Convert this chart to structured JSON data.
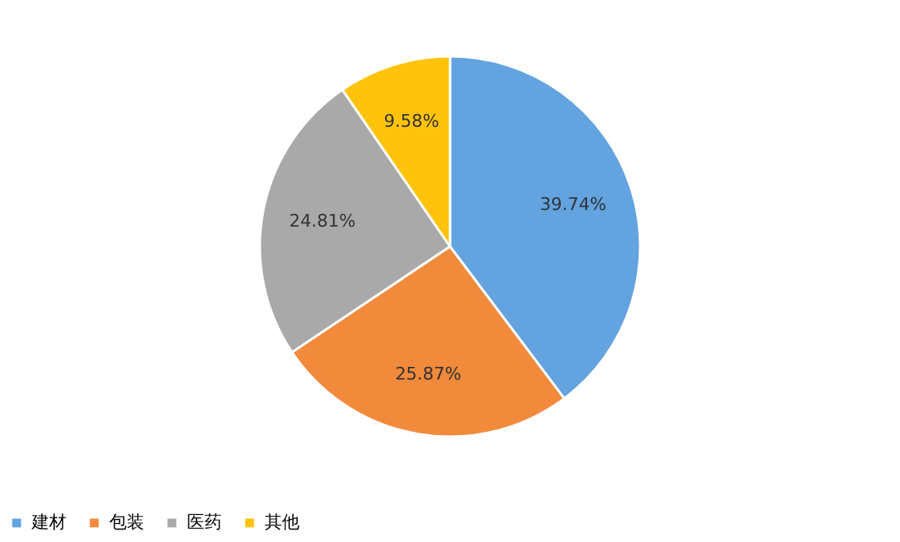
{
  "chart_data": {
    "type": "pie",
    "categories": [
      "建材",
      "包装",
      "医药",
      "其他"
    ],
    "values": [
      39.74,
      25.87,
      24.81,
      9.58
    ],
    "colors": [
      "#62a3e0",
      "#f28a3c",
      "#a9a9a9",
      "#ffc30b"
    ],
    "value_labels": [
      "39.74%",
      "25.87%",
      "24.81%",
      "9.58%"
    ],
    "legend": "bottom"
  }
}
